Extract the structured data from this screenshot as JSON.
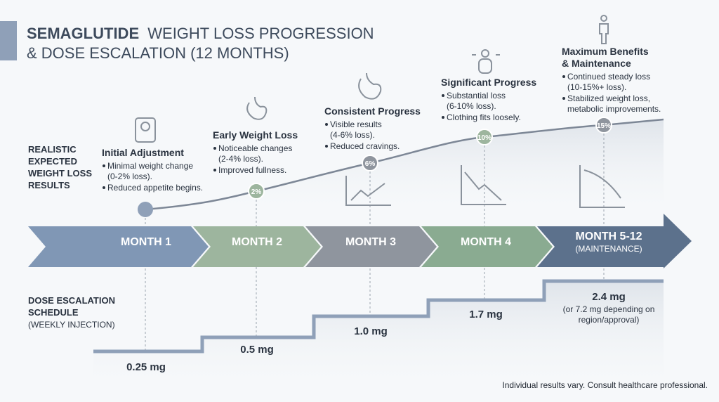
{
  "header": {
    "title": [
      "SEMAGLUTIDE",
      "WEIGHT LOSS PROGRESSION",
      "& DOSE ESCALATION (12 MONTHS)"
    ]
  },
  "results_label": [
    "REALISTIC",
    "EXPECTED",
    "WEIGHT LOSS",
    "RESULTS"
  ],
  "stages": [
    {
      "title": [
        "Initial Adjustment"
      ],
      "bullets": [
        [
          "Minimal weight change",
          "(0-2% loss)."
        ],
        [
          "Reduced appetite begins."
        ]
      ]
    },
    {
      "title": [
        "Early Weight Loss"
      ],
      "marker": "2%",
      "bullets": [
        [
          "Noticeable changes",
          "(2-4% loss)."
        ],
        [
          "Improved fullness."
        ]
      ]
    },
    {
      "title": [
        "Consistent Progress"
      ],
      "marker": "6%",
      "bullets": [
        [
          "Visible results",
          "(4-6% loss)."
        ],
        [
          "Reduced cravings."
        ]
      ]
    },
    {
      "title": [
        "Significant Progress"
      ],
      "marker": "10%",
      "bullets": [
        [
          "Substantial loss",
          "(6-10% loss)."
        ],
        [
          "Clothing fits loosely."
        ]
      ]
    },
    {
      "title": [
        "Maximum Benefits",
        "& Maintenance"
      ],
      "marker": "15%",
      "bullets": [
        [
          "Continued steady loss",
          "(10-15%+ loss)."
        ],
        [
          "Stabilized weight loss,",
          "metabolic improvements."
        ]
      ]
    }
  ],
  "timeline": {
    "months": [
      "MONTH 1",
      "MONTH 2",
      "MONTH 3",
      "MONTH 4",
      "MONTH 5-12"
    ],
    "last_note": "(MAINTENANCE)"
  },
  "dose_label": [
    "DOSE ESCALATION",
    "SCHEDULE",
    "(WEEKLY INJECTION)"
  ],
  "doses": [
    "0.25 mg",
    "0.5 mg",
    "1.0 mg",
    "1.7 mg",
    "2.4 mg"
  ],
  "dose_note": [
    "(or 7.2 mg depending on",
    "region/approval)"
  ],
  "footer": "Individual results vary. Consult healthcare professional."
}
